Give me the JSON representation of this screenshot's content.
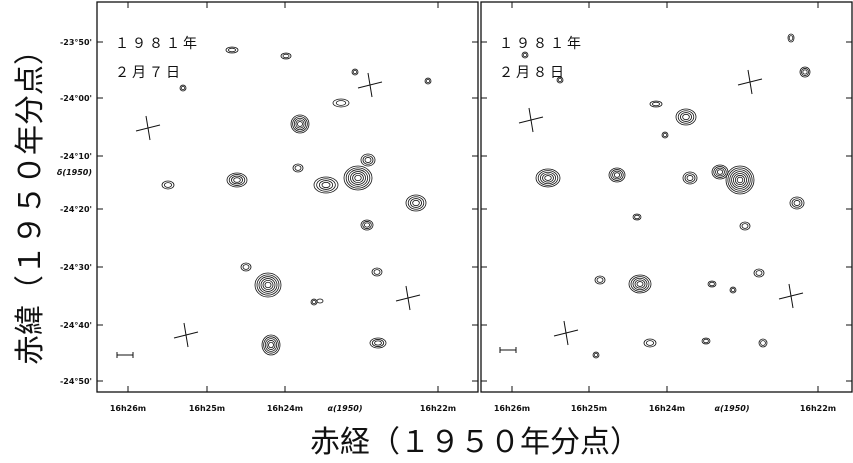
{
  "y_axis_label": "赤緯（１９５０年分点）",
  "x_axis_label": "赤経（１９５０年分点）",
  "y_ticks": [
    "-23°50'",
    "-24°00'",
    "-24°10'",
    "δ(1950)",
    "-24°20'",
    "-24°30'",
    "-24°40'",
    "-24°50'"
  ],
  "panels": [
    {
      "year": "１９８１年",
      "date": "２月７日",
      "x_ticks": [
        "16h26m",
        "16h25m",
        "16h24m",
        "α(1950)",
        "16h22m"
      ]
    },
    {
      "year": "１９８１年",
      "date": "２月８日",
      "x_ticks": [
        "16h26m",
        "16h25m",
        "16h24m",
        "α(1950)",
        "16h22m"
      ]
    }
  ]
}
